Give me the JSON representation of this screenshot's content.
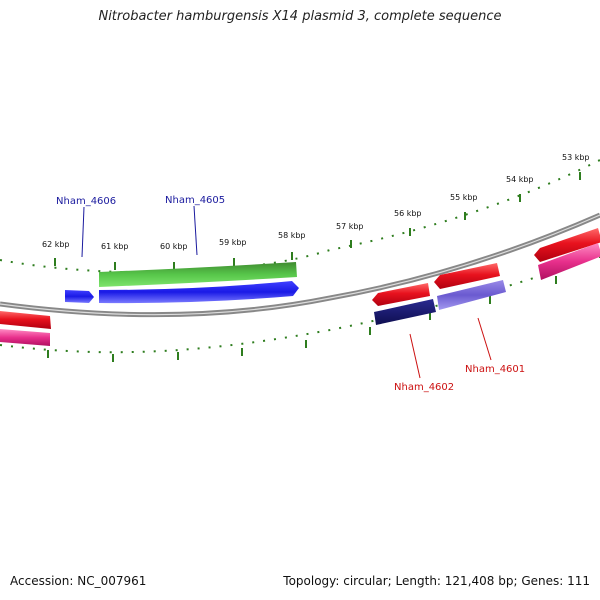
{
  "title": "Nitrobacter hamburgensis X14 plasmid 3, complete sequence",
  "footer": {
    "accession": "Accession: NC_007961",
    "summary": "Topology: circular; Length: 121,408 bp; Genes: 111"
  },
  "ticks": [
    "53 kbp",
    "54 kbp",
    "55 kbp",
    "56 kbp",
    "57 kbp",
    "58 kbp",
    "59 kbp",
    "60 kbp",
    "61 kbp",
    "62 kbp"
  ],
  "gene_labels": {
    "nham_4606": "Nham_4606",
    "nham_4605": "Nham_4605",
    "nham_4602": "Nham_4602",
    "nham_4601": "Nham_4601"
  },
  "colors": {
    "backbone": "#888888",
    "tick": "#2e7d1e",
    "label_blue": "#1a1a9e",
    "label_red": "#cc1111",
    "gene_red": "#e8121e",
    "gene_pink": "#e8308c",
    "gene_green": "#3aa632",
    "gene_blue": "#1a1ae6",
    "gene_navy": "#14146e",
    "gene_lavender": "#7a6ad8"
  }
}
